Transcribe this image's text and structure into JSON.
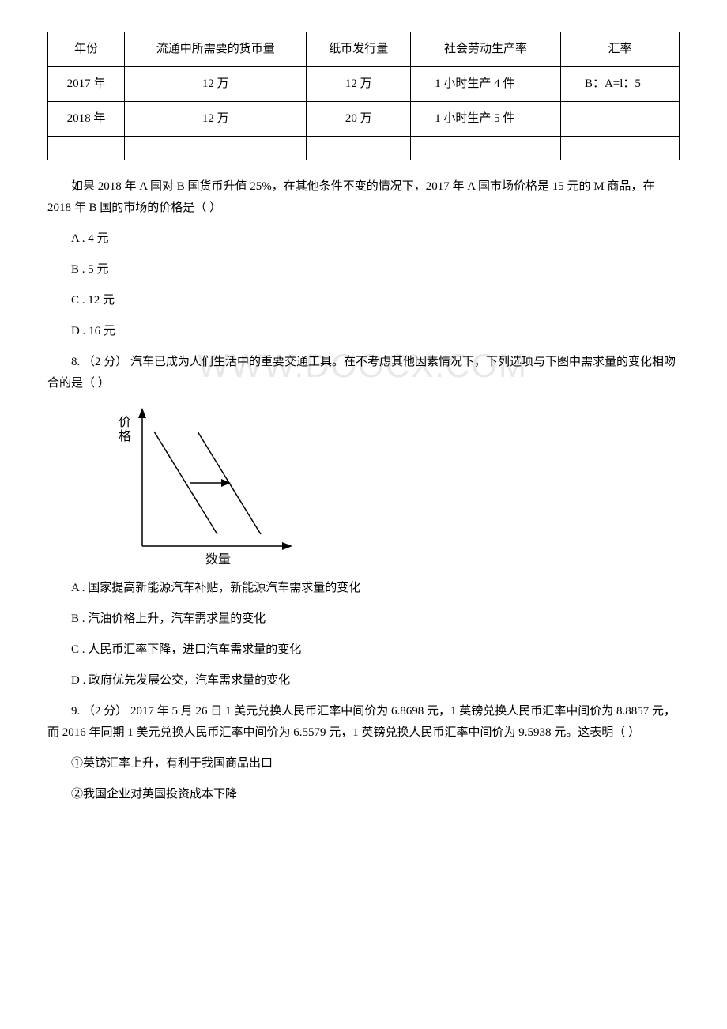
{
  "table": {
    "headers": [
      "年份",
      "流通中所需要的货币量",
      "纸币发行量",
      "社会劳动生产率",
      "汇率"
    ],
    "rows": [
      [
        "2017 年",
        "12 万",
        "12 万",
        "1 小时生产 4 件",
        "B：A=l：5"
      ],
      [
        "2018 年",
        "12 万",
        "20 万",
        "1 小时生产 5 件",
        ""
      ],
      [
        "",
        "",
        "",
        "",
        ""
      ]
    ]
  },
  "q7": {
    "context": "如果 2018 年 A 国对 B 国货币升值 25%，在其他条件不变的情况下，2017 年 A 国市场价格是 15 元的 M 商品，在 2018 年 B 国的市场的价格是（ ）",
    "optA": "A . 4 元",
    "optB": "B . 5 元",
    "optC": "C . 12 元",
    "optD": "D . 16 元"
  },
  "q8": {
    "stem": "8. （2 分） 汽车已成为人们生活中的重要交通工具。在不考虑其他因素情况下，下列选项与下图中需求量的变化相吻合的是（ ）",
    "watermark": "WWW.DOOCX.COM",
    "chart": {
      "y_label": "价格",
      "x_label": "数量",
      "axis_color": "#000000",
      "line_color": "#000000",
      "line_width": 1.5,
      "arrow_color": "#000000"
    },
    "optA": "A . 国家提高新能源汽车补贴，新能源汽车需求量的变化",
    "optB": "B . 汽油价格上升，汽车需求量的变化",
    "optC": "C . 人民币汇率下降，进口汽车需求量的变化",
    "optD": "D . 政府优先发展公交，汽车需求量的变化"
  },
  "q9": {
    "stem": "9. （2 分） 2017 年 5 月 26 日 1 美元兑换人民币汇率中间价为 6.8698 元，1 英镑兑换人民币汇率中间价为 8.8857 元，而 2016 年同期 1 美元兑换人民币汇率中间价为 6.5579 元，1 英镑兑换人民币汇率中间价为 9.5938 元。这表明（ ）",
    "item1": "①英镑汇率上升，有利于我国商品出口",
    "item2": "②我国企业对英国投资成本下降"
  }
}
